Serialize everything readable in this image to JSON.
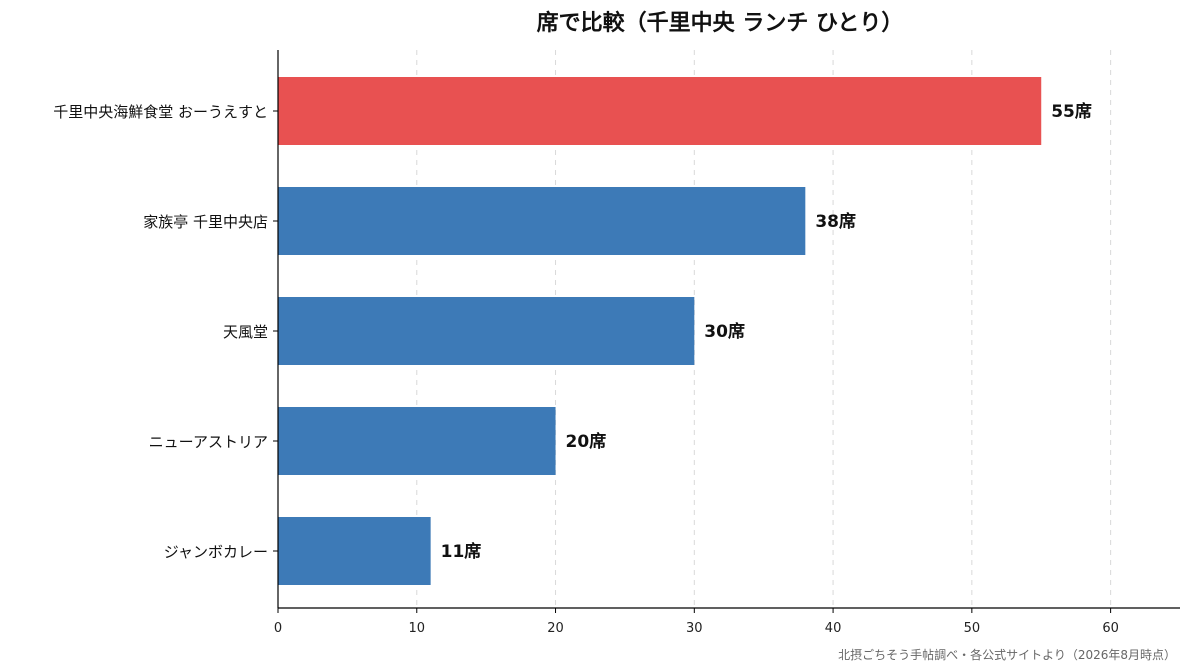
{
  "chart_data": {
    "type": "bar",
    "orientation": "horizontal",
    "title": "席で比較（千里中央 ランチ ひとり）",
    "categories": [
      "千里中央海鮮食堂 おーうえすと",
      "家族亭 千里中央店",
      "天風堂",
      "ニューアストリア",
      "ジャンボカレー"
    ],
    "values": [
      55,
      38,
      30,
      20,
      11
    ],
    "value_labels": [
      "55席",
      "38席",
      "30席",
      "20席",
      "11席"
    ],
    "highlight_index": 0,
    "colors": {
      "highlight": "#e85151",
      "default": "#3d7ab7",
      "grid": "#d9d9d9",
      "axis": "#000000"
    },
    "xlim": [
      0,
      65
    ],
    "xticks": [
      0,
      10,
      20,
      30,
      40,
      50,
      60
    ],
    "xlabel": "",
    "ylabel": "",
    "grid": "x-dashed",
    "source_note": "北摂ごちそう手帖調べ・各公式サイトより（2026年8月時点）"
  }
}
